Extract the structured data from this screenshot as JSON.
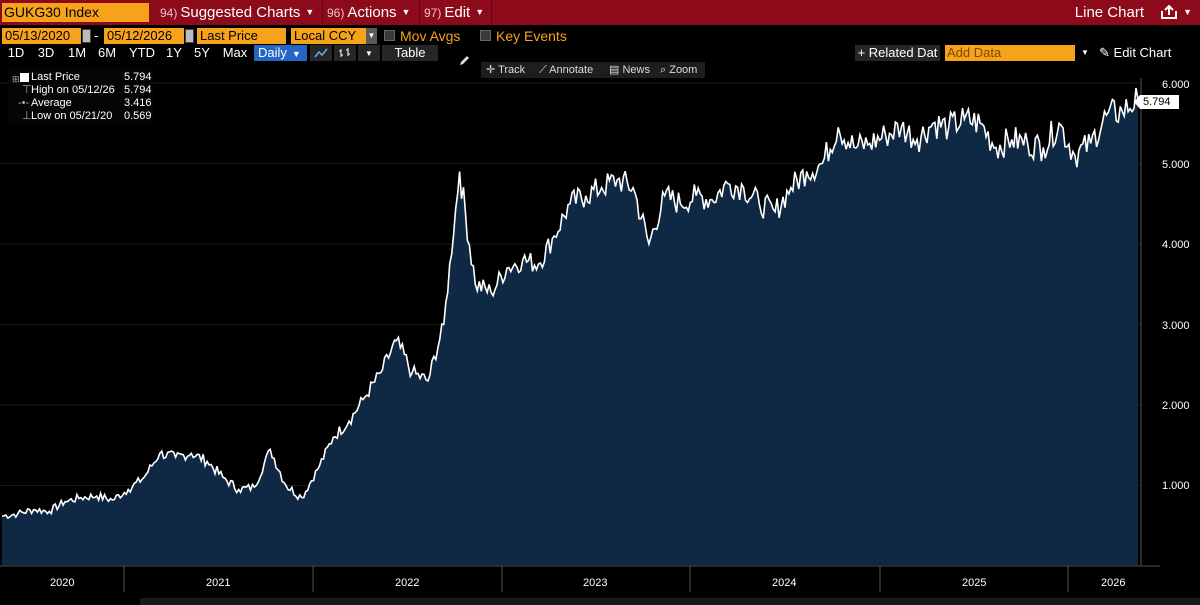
{
  "header": {
    "ticker": "GUKG30 Index",
    "menus": [
      {
        "num": "94)",
        "label": "Suggested Charts"
      },
      {
        "num": "96)",
        "label": "Actions"
      },
      {
        "num": "97)",
        "label": "Edit"
      }
    ],
    "chart_type": "Line Chart"
  },
  "controls": {
    "start_date": "05/13/2020",
    "end_date": "05/12/2026",
    "field": "Last Price",
    "currency": "Local CCY",
    "mov_avgs": "Mov Avgs",
    "key_events": "Key Events",
    "periods": [
      "1D",
      "3D",
      "1M",
      "6M",
      "YTD",
      "1Y",
      "5Y",
      "Max"
    ],
    "frequency": "Daily",
    "table_label": "Table",
    "related_data": "+ Related Dat",
    "add_data_placeholder": "Add Data",
    "edit_chart": "Edit Chart"
  },
  "tools": [
    "Track",
    "Annotate",
    "News",
    "Zoom"
  ],
  "legend": {
    "rows": [
      {
        "label": "Last Price",
        "value": "5.794"
      },
      {
        "label": "High on 05/12/26",
        "value": "5.794"
      },
      {
        "label": "Average",
        "value": "3.416"
      },
      {
        "label": "Low on 05/21/20",
        "value": "0.569"
      }
    ]
  },
  "colors": {
    "topbar": "#8c0a19",
    "accent_orange": "#f7a21b",
    "area_fill": "#0f2844",
    "line": "#ffffff",
    "selected": "#2466c4"
  },
  "chart_data": {
    "type": "area",
    "title": "GUKG30 Index",
    "series": [
      {
        "name": "Last Price"
      }
    ],
    "ylim": [
      0.0,
      6.1
    ],
    "y_ticks": [
      "1.000",
      "2.000",
      "3.000",
      "4.000",
      "5.000",
      "6.000"
    ],
    "x_ticks": [
      "2020",
      "2021",
      "2022",
      "2023",
      "2024",
      "2025",
      "2026"
    ],
    "last_value_label": "5.794",
    "x": [
      "2020-05",
      "2020-06",
      "2020-07",
      "2020-08",
      "2020-09",
      "2020-10",
      "2020-11",
      "2020-12",
      "2021-01",
      "2021-02",
      "2021-03",
      "2021-04",
      "2021-05",
      "2021-06",
      "2021-07",
      "2021-08",
      "2021-09",
      "2021-10",
      "2021-11",
      "2021-12",
      "2022-01",
      "2022-02",
      "2022-03",
      "2022-04",
      "2022-05",
      "2022-06",
      "2022-07",
      "2022-08",
      "2022-09",
      "2022-10",
      "2022-11",
      "2022-12",
      "2023-01",
      "2023-02",
      "2023-03",
      "2023-04",
      "2023-05",
      "2023-06",
      "2023-07",
      "2023-08",
      "2023-09",
      "2023-10",
      "2023-11",
      "2023-12",
      "2024-01",
      "2024-02",
      "2024-03",
      "2024-04",
      "2024-05",
      "2024-06",
      "2024-07",
      "2024-08",
      "2024-09",
      "2024-10",
      "2024-11",
      "2024-12",
      "2025-01",
      "2025-02",
      "2025-03",
      "2025-04",
      "2025-05",
      "2025-06",
      "2025-07",
      "2025-08",
      "2025-09",
      "2025-10",
      "2025-11",
      "2025-12",
      "2026-01",
      "2026-02",
      "2026-03",
      "2026-04",
      "2026-05"
    ],
    "values": [
      0.62,
      0.65,
      0.7,
      0.68,
      0.8,
      0.85,
      0.87,
      0.82,
      0.95,
      1.1,
      1.4,
      1.35,
      1.4,
      1.3,
      1.1,
      0.95,
      0.98,
      1.45,
      1.0,
      0.85,
      1.2,
      1.6,
      1.8,
      2.1,
      2.4,
      2.8,
      2.4,
      2.3,
      3.0,
      4.9,
      3.5,
      3.4,
      3.7,
      3.8,
      3.75,
      4.1,
      4.5,
      4.6,
      4.7,
      4.8,
      4.7,
      4.0,
      4.6,
      4.5,
      4.6,
      4.55,
      4.75,
      4.7,
      4.5,
      4.4,
      4.7,
      4.9,
      5.0,
      5.45,
      5.2,
      5.25,
      5.35,
      5.45,
      5.3,
      5.5,
      5.45,
      5.55,
      5.5,
      5.2,
      5.3,
      5.25,
      5.2,
      5.5,
      5.1,
      5.25,
      5.6,
      5.65,
      5.794
    ]
  }
}
